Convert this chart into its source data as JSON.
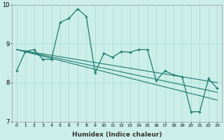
{
  "xlabel": "Humidex (Indice chaleur)",
  "bg_color": "#cceee8",
  "grid_color": "#aaddd8",
  "line_color": "#1a7a6e",
  "xlim": [
    -0.5,
    23.5
  ],
  "ylim": [
    7,
    10
  ],
  "yticks": [
    7,
    8,
    9,
    10
  ],
  "xticks": [
    0,
    1,
    2,
    3,
    4,
    5,
    6,
    7,
    8,
    9,
    10,
    11,
    12,
    13,
    14,
    15,
    16,
    17,
    18,
    19,
    20,
    21,
    22,
    23
  ],
  "series_main": [
    8.3,
    8.8,
    8.85,
    8.6,
    8.6,
    9.55,
    9.65,
    9.9,
    9.7,
    8.25,
    8.75,
    8.65,
    8.8,
    8.78,
    8.85,
    8.85,
    8.05,
    8.3,
    8.2,
    8.15,
    7.25,
    7.25,
    8.1,
    7.85
  ],
  "trend1_start": 8.85,
  "trend1_end": 8.0,
  "trend2_start": 8.85,
  "trend2_end": 7.75,
  "trend3_start": 8.85,
  "trend3_end": 7.55
}
